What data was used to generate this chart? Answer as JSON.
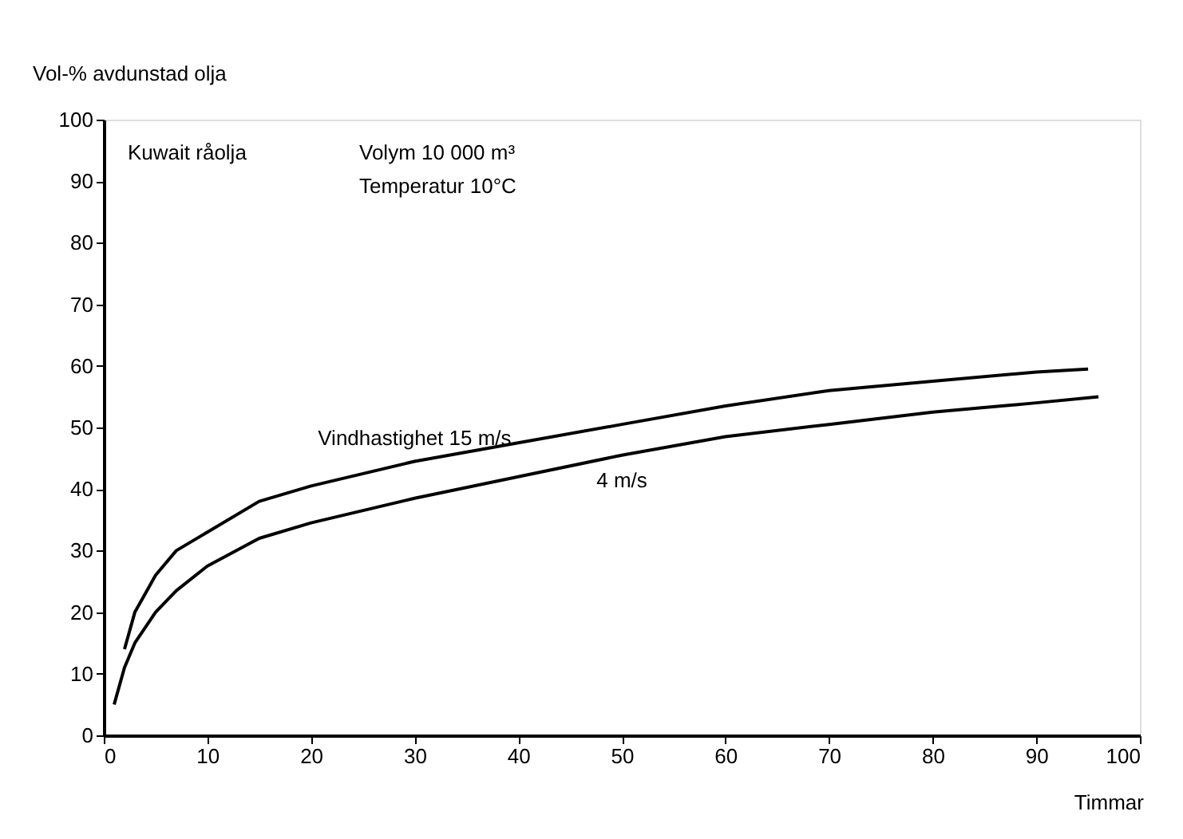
{
  "chart_data": {
    "type": "line",
    "ylabel": "Vol-% avdunstad olja",
    "xlabel": "Timmar",
    "xlim": [
      0,
      100
    ],
    "xticks": [
      0,
      10,
      20,
      30,
      40,
      50,
      60,
      70,
      80,
      90,
      100
    ],
    "ylim": [
      0,
      100
    ],
    "yticks": [
      0,
      10,
      20,
      30,
      40,
      50,
      60,
      70,
      80,
      90,
      100
    ],
    "grid": false,
    "marker": "none",
    "line_style": "solid",
    "annotations": [
      {
        "text": "Kuwait råolja"
      },
      {
        "text": "Volym 10 000 m³"
      },
      {
        "text": "Temperatur 10°C"
      }
    ],
    "series": [
      {
        "name": "Vindhastighet 15 m/s",
        "color": "#000000",
        "x": [
          2,
          3,
          4,
          5,
          7,
          10,
          15,
          20,
          30,
          40,
          50,
          60,
          70,
          80,
          90,
          95
        ],
        "values": [
          14,
          20,
          23,
          26,
          30,
          33,
          38,
          40.5,
          44.5,
          47.5,
          50.5,
          53.5,
          56,
          57.5,
          59,
          59.5
        ]
      },
      {
        "name": "4 m/s",
        "color": "#000000",
        "x": [
          1,
          2,
          3,
          5,
          7,
          10,
          15,
          20,
          30,
          40,
          50,
          60,
          70,
          80,
          90,
          96
        ],
        "values": [
          5,
          11,
          15,
          20,
          23.5,
          27.5,
          32,
          34.5,
          38.5,
          42,
          45.5,
          48.5,
          50.5,
          52.5,
          54,
          55
        ]
      }
    ]
  }
}
